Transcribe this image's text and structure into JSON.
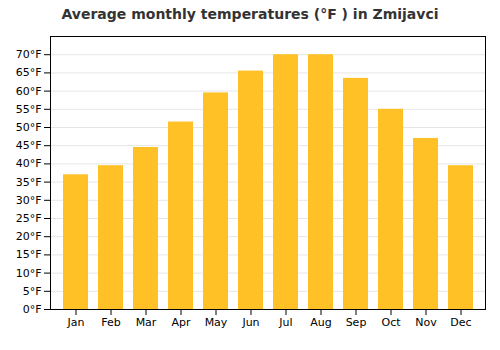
{
  "chart_data": {
    "type": "bar",
    "title": "Average monthly temperatures (°F ) in Zmijavci",
    "categories": [
      "Jan",
      "Feb",
      "Mar",
      "Apr",
      "May",
      "Jun",
      "Jul",
      "Aug",
      "Sep",
      "Oct",
      "Nov",
      "Dec"
    ],
    "values": [
      37,
      39.5,
      44.5,
      51.5,
      59.5,
      65.5,
      70,
      70,
      63.5,
      55,
      47,
      39.5
    ],
    "color": "#FFC125",
    "ylim": [
      0,
      75
    ],
    "yticks": [
      {
        "value": 0,
        "label": "0°F"
      },
      {
        "value": 5,
        "label": "5°F"
      },
      {
        "value": 10,
        "label": "10°F"
      },
      {
        "value": 15,
        "label": "15°F"
      },
      {
        "value": 20,
        "label": "20°F"
      },
      {
        "value": 25,
        "label": "25°F"
      },
      {
        "value": 30,
        "label": "30°F"
      },
      {
        "value": 35,
        "label": "35°F"
      },
      {
        "value": 40,
        "label": "40°F"
      },
      {
        "value": 45,
        "label": "45°F"
      },
      {
        "value": 50,
        "label": "50°F"
      },
      {
        "value": 55,
        "label": "55°F"
      },
      {
        "value": 60,
        "label": "60°F"
      },
      {
        "value": 65,
        "label": "65°F"
      },
      {
        "value": 70,
        "label": "70°F"
      }
    ],
    "grid": true
  }
}
